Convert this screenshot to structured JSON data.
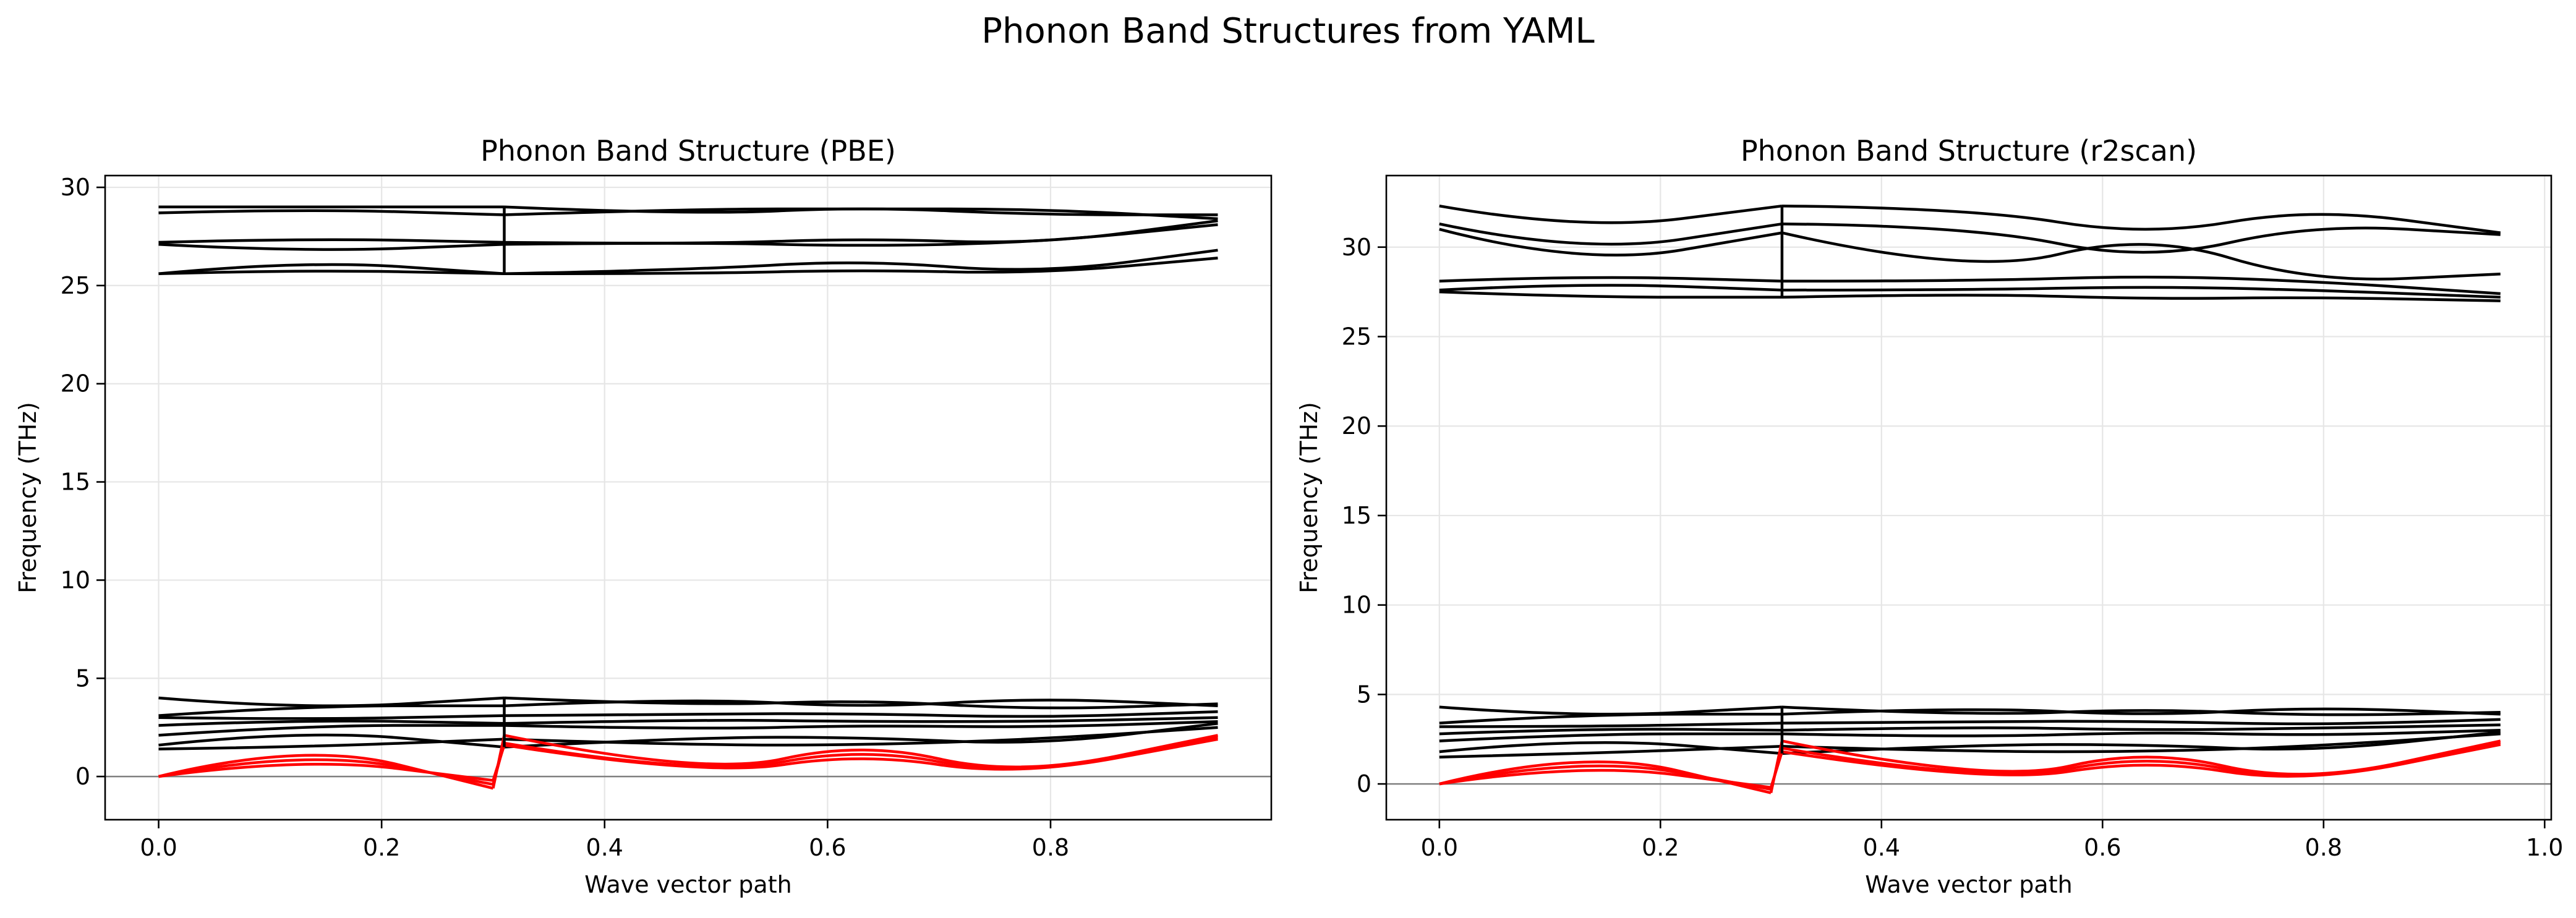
{
  "suptitle": "Phonon Band Structures from YAML",
  "chart_data": [
    {
      "type": "line",
      "title": "Phonon Band Structure (PBE)",
      "xlabel": "Wave vector path",
      "ylabel": "Frequency (THz)",
      "xlim": [
        -0.048,
        0.998
      ],
      "ylim": [
        -2.2,
        30.6
      ],
      "xticks": [
        0.0,
        0.2,
        0.4,
        0.6,
        0.8
      ],
      "xtick_labels": [
        "0.0",
        "0.2",
        "0.4",
        "0.6",
        "0.8"
      ],
      "yticks": [
        0,
        5,
        10,
        15,
        20,
        25,
        30
      ],
      "ytick_labels": [
        "0",
        "5",
        "10",
        "15",
        "20",
        "25",
        "30"
      ],
      "grid": true,
      "zero_line": true,
      "segments": [
        [
          0.0,
          0.31
        ],
        [
          0.31,
          0.95
        ]
      ],
      "optical_bands": [
        {
          "name": "",
          "color": "#000000",
          "x": [
            0.0,
            0.13,
            0.31,
            0.48,
            0.63,
            0.79,
            0.95
          ],
          "y": [
            29.0,
            29.0,
            29.0,
            28.6,
            29.0,
            28.6,
            28.6
          ]
        },
        {
          "name": "",
          "color": "#000000",
          "x": [
            0.0,
            0.13,
            0.31,
            0.48,
            0.63,
            0.79,
            0.95
          ],
          "y": [
            28.7,
            28.9,
            28.6,
            28.9,
            28.9,
            28.9,
            28.4
          ]
        },
        {
          "name": "",
          "color": "#000000",
          "x": [
            0.0,
            0.13,
            0.31,
            0.48,
            0.63,
            0.79,
            0.95
          ],
          "y": [
            27.2,
            27.4,
            27.2,
            27.1,
            27.4,
            27.1,
            28.3
          ]
        },
        {
          "name": "",
          "color": "#000000",
          "x": [
            0.0,
            0.13,
            0.31,
            0.48,
            0.63,
            0.79,
            0.95
          ],
          "y": [
            27.1,
            26.7,
            27.1,
            27.2,
            27.0,
            27.2,
            28.1
          ]
        },
        {
          "name": "",
          "color": "#000000",
          "x": [
            0.0,
            0.13,
            0.31,
            0.48,
            0.63,
            0.79,
            0.95
          ],
          "y": [
            25.6,
            26.3,
            25.6,
            25.8,
            26.3,
            25.6,
            26.8
          ]
        },
        {
          "name": "",
          "color": "#000000",
          "x": [
            0.0,
            0.13,
            0.31,
            0.48,
            0.63,
            0.79,
            0.95
          ],
          "y": [
            25.6,
            25.8,
            25.6,
            25.6,
            25.8,
            25.6,
            26.4
          ]
        }
      ],
      "low_optical_bands": [
        {
          "name": "",
          "color": "#000000",
          "x": [
            0.0,
            0.13,
            0.31,
            0.48,
            0.63,
            0.79,
            0.95
          ],
          "y": [
            4.0,
            3.4,
            4.0,
            3.6,
            3.9,
            3.4,
            3.7
          ]
        },
        {
          "name": "",
          "color": "#000000",
          "x": [
            0.0,
            0.13,
            0.31,
            0.48,
            0.63,
            0.79,
            0.95
          ],
          "y": [
            3.1,
            3.6,
            3.6,
            4.0,
            3.5,
            4.0,
            3.6
          ]
        },
        {
          "name": "",
          "color": "#000000",
          "x": [
            0.0,
            0.13,
            0.31,
            0.48,
            0.63,
            0.79,
            0.95
          ],
          "y": [
            3.0,
            2.9,
            3.1,
            3.2,
            3.2,
            3.0,
            3.3
          ]
        },
        {
          "name": "",
          "color": "#000000",
          "x": [
            0.0,
            0.13,
            0.31,
            0.48,
            0.63,
            0.79,
            0.95
          ],
          "y": [
            2.6,
            2.9,
            2.7,
            2.9,
            2.8,
            2.8,
            3.0
          ]
        },
        {
          "name": "",
          "color": "#000000",
          "x": [
            0.0,
            0.13,
            0.31,
            0.48,
            0.63,
            0.79,
            0.95
          ],
          "y": [
            2.1,
            2.6,
            2.6,
            2.4,
            2.6,
            2.5,
            2.8
          ]
        },
        {
          "name": "",
          "color": "#000000",
          "x": [
            0.0,
            0.13,
            0.31,
            0.48,
            0.63,
            0.79,
            0.95
          ],
          "y": [
            1.6,
            2.4,
            1.5,
            2.0,
            2.0,
            1.6,
            2.7
          ]
        },
        {
          "name": "",
          "color": "#000000",
          "x": [
            0.0,
            0.13,
            0.31,
            0.48,
            0.63,
            0.79,
            0.95
          ],
          "y": [
            1.4,
            1.5,
            1.9,
            1.6,
            1.6,
            1.9,
            2.5
          ]
        }
      ],
      "acoustic_bands": [
        {
          "name": "",
          "color": "#ff0000",
          "x": [
            0.0,
            0.13,
            0.3,
            0.31,
            0.49,
            0.63,
            0.77,
            0.95
          ],
          "y": [
            0.0,
            1.8,
            -0.6,
            2.1,
            0.0,
            1.8,
            0.0,
            2.1
          ]
        },
        {
          "name": "",
          "color": "#ff0000",
          "x": [
            0.0,
            0.13,
            0.3,
            0.31,
            0.49,
            0.63,
            0.77,
            0.95
          ],
          "y": [
            0.0,
            1.4,
            -0.4,
            1.7,
            0.0,
            1.5,
            0.0,
            2.0
          ]
        },
        {
          "name": "",
          "color": "#ff0000",
          "x": [
            0.0,
            0.13,
            0.3,
            0.31,
            0.49,
            0.63,
            0.77,
            0.95
          ],
          "y": [
            0.0,
            1.0,
            -0.2,
            1.6,
            0.0,
            1.2,
            0.0,
            1.9
          ]
        }
      ]
    },
    {
      "type": "line",
      "title": "Phonon Band Structure (r2scan)",
      "xlabel": "Wave vector path",
      "ylabel": "Frequency (THz)",
      "xlim": [
        -0.048,
        1.006
      ],
      "ylim": [
        -2.0,
        34.0
      ],
      "xticks": [
        0.0,
        0.2,
        0.4,
        0.6,
        0.8,
        1.0
      ],
      "xtick_labels": [
        "0.0",
        "0.2",
        "0.4",
        "0.6",
        "0.8",
        "1.0"
      ],
      "yticks": [
        0,
        5,
        10,
        15,
        20,
        25,
        30
      ],
      "ytick_labels": [
        "0",
        "5",
        "10",
        "15",
        "20",
        "25",
        "30"
      ],
      "grid": true,
      "zero_line": true,
      "segments": [
        [
          0.0,
          0.31
        ],
        [
          0.31,
          0.96
        ]
      ],
      "optical_bands": [
        {
          "name": "",
          "color": "#000000",
          "x": [
            0.0,
            0.13,
            0.31,
            0.48,
            0.64,
            0.79,
            0.96
          ],
          "y": [
            32.3,
            30.9,
            32.3,
            32.2,
            30.6,
            32.2,
            30.8
          ]
        },
        {
          "name": "",
          "color": "#000000",
          "x": [
            0.0,
            0.13,
            0.31,
            0.48,
            0.64,
            0.79,
            0.96
          ],
          "y": [
            31.3,
            29.6,
            31.3,
            31.2,
            29.2,
            31.3,
            30.7
          ]
        },
        {
          "name": "",
          "color": "#000000",
          "x": [
            0.0,
            0.13,
            0.31,
            0.48,
            0.64,
            0.79,
            0.96
          ],
          "y": [
            31.0,
            28.9,
            30.8,
            28.4,
            30.8,
            28.0,
            28.5
          ]
        },
        {
          "name": "",
          "color": "#000000",
          "x": [
            0.0,
            0.13,
            0.31,
            0.48,
            0.64,
            0.79,
            0.96
          ],
          "y": [
            28.1,
            28.4,
            28.1,
            28.1,
            28.4,
            28.1,
            27.4
          ]
        },
        {
          "name": "",
          "color": "#000000",
          "x": [
            0.0,
            0.13,
            0.31,
            0.48,
            0.64,
            0.79,
            0.96
          ],
          "y": [
            27.6,
            28.0,
            27.6,
            27.6,
            27.8,
            27.6,
            27.2
          ]
        },
        {
          "name": "",
          "color": "#000000",
          "x": [
            0.0,
            0.13,
            0.31,
            0.48,
            0.64,
            0.79,
            0.96
          ],
          "y": [
            27.5,
            27.2,
            27.2,
            27.4,
            27.1,
            27.2,
            27.0
          ]
        }
      ],
      "low_optical_bands": [
        {
          "name": "",
          "color": "#000000",
          "x": [
            0.0,
            0.13,
            0.31,
            0.48,
            0.64,
            0.79,
            0.96
          ],
          "y": [
            4.3,
            3.7,
            4.3,
            3.8,
            4.2,
            3.8,
            4.0
          ]
        },
        {
          "name": "",
          "color": "#000000",
          "x": [
            0.0,
            0.13,
            0.31,
            0.48,
            0.64,
            0.79,
            0.96
          ],
          "y": [
            3.4,
            3.9,
            3.9,
            4.3,
            3.8,
            4.3,
            3.9
          ]
        },
        {
          "name": "",
          "color": "#000000",
          "x": [
            0.0,
            0.13,
            0.31,
            0.48,
            0.64,
            0.79,
            0.96
          ],
          "y": [
            3.2,
            3.2,
            3.4,
            3.5,
            3.5,
            3.3,
            3.6
          ]
        },
        {
          "name": "",
          "color": "#000000",
          "x": [
            0.0,
            0.13,
            0.31,
            0.48,
            0.64,
            0.79,
            0.96
          ],
          "y": [
            2.8,
            3.1,
            3.0,
            3.2,
            3.0,
            3.1,
            3.3
          ]
        },
        {
          "name": "",
          "color": "#000000",
          "x": [
            0.0,
            0.13,
            0.31,
            0.48,
            0.64,
            0.79,
            0.96
          ],
          "y": [
            2.4,
            2.8,
            2.8,
            2.6,
            2.9,
            2.7,
            3.0
          ]
        },
        {
          "name": "",
          "color": "#000000",
          "x": [
            0.0,
            0.13,
            0.31,
            0.48,
            0.64,
            0.79,
            0.96
          ],
          "y": [
            1.8,
            2.6,
            1.7,
            2.2,
            2.2,
            1.8,
            2.9
          ]
        },
        {
          "name": "",
          "color": "#000000",
          "x": [
            0.0,
            0.13,
            0.31,
            0.48,
            0.64,
            0.79,
            0.96
          ],
          "y": [
            1.5,
            1.7,
            2.1,
            1.8,
            1.8,
            2.1,
            2.8
          ]
        }
      ],
      "acoustic_bands": [
        {
          "name": "",
          "color": "#ff0000",
          "x": [
            0.0,
            0.13,
            0.3,
            0.31,
            0.5,
            0.64,
            0.78,
            0.96
          ],
          "y": [
            0.0,
            2.0,
            -0.5,
            2.4,
            0.0,
            2.0,
            0.0,
            2.4
          ]
        },
        {
          "name": "",
          "color": "#ff0000",
          "x": [
            0.0,
            0.13,
            0.3,
            0.31,
            0.5,
            0.64,
            0.78,
            0.96
          ],
          "y": [
            0.0,
            1.6,
            -0.3,
            2.0,
            0.0,
            1.7,
            0.0,
            2.3
          ]
        },
        {
          "name": "",
          "color": "#ff0000",
          "x": [
            0.0,
            0.13,
            0.3,
            0.31,
            0.5,
            0.64,
            0.78,
            0.96
          ],
          "y": [
            0.0,
            1.2,
            -0.2,
            1.8,
            0.0,
            1.4,
            0.0,
            2.2
          ]
        }
      ]
    }
  ]
}
